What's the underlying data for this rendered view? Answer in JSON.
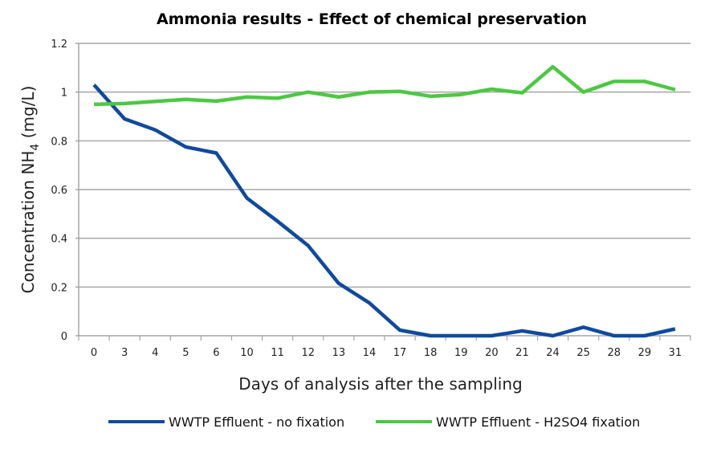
{
  "chart_data": {
    "type": "line",
    "title": "Ammonia results - Effect of chemical preservation",
    "xlabel": "Days of analysis after the sampling",
    "ylabel": "Concentration NH",
    "ylabel_sub": "4",
    "ylabel_unit": " (mg/L)",
    "ylim": [
      0,
      1.2
    ],
    "yticks": [
      "0",
      "0.2",
      "0.4",
      "0.6",
      "0.8",
      "1",
      "1.2"
    ],
    "grid": true,
    "legend_position": "bottom",
    "categories": [
      "0",
      "3",
      "4",
      "5",
      "6",
      "10",
      "11",
      "12",
      "13",
      "14",
      "17",
      "18",
      "19",
      "20",
      "21",
      "24",
      "25",
      "28",
      "29",
      "31"
    ],
    "series": [
      {
        "name": "WWTP Effluent - no fixation",
        "color": "#0f4aa0",
        "values": [
          1.03,
          0.89,
          0.845,
          0.775,
          0.75,
          0.565,
          0.47,
          0.37,
          0.215,
          0.135,
          0.023,
          0,
          0,
          0,
          0.02,
          0,
          0.035,
          0,
          0,
          0.028
        ]
      },
      {
        "name": "WWTP Effluent - H2SO4 fixation",
        "color": "#4cc842",
        "values": [
          0.95,
          0.953,
          0.962,
          0.97,
          0.963,
          0.98,
          0.975,
          1.0,
          0.98,
          1.0,
          1.003,
          0.983,
          0.99,
          1.012,
          0.997,
          1.104,
          1.0,
          1.044,
          1.044,
          1.01
        ]
      }
    ]
  }
}
